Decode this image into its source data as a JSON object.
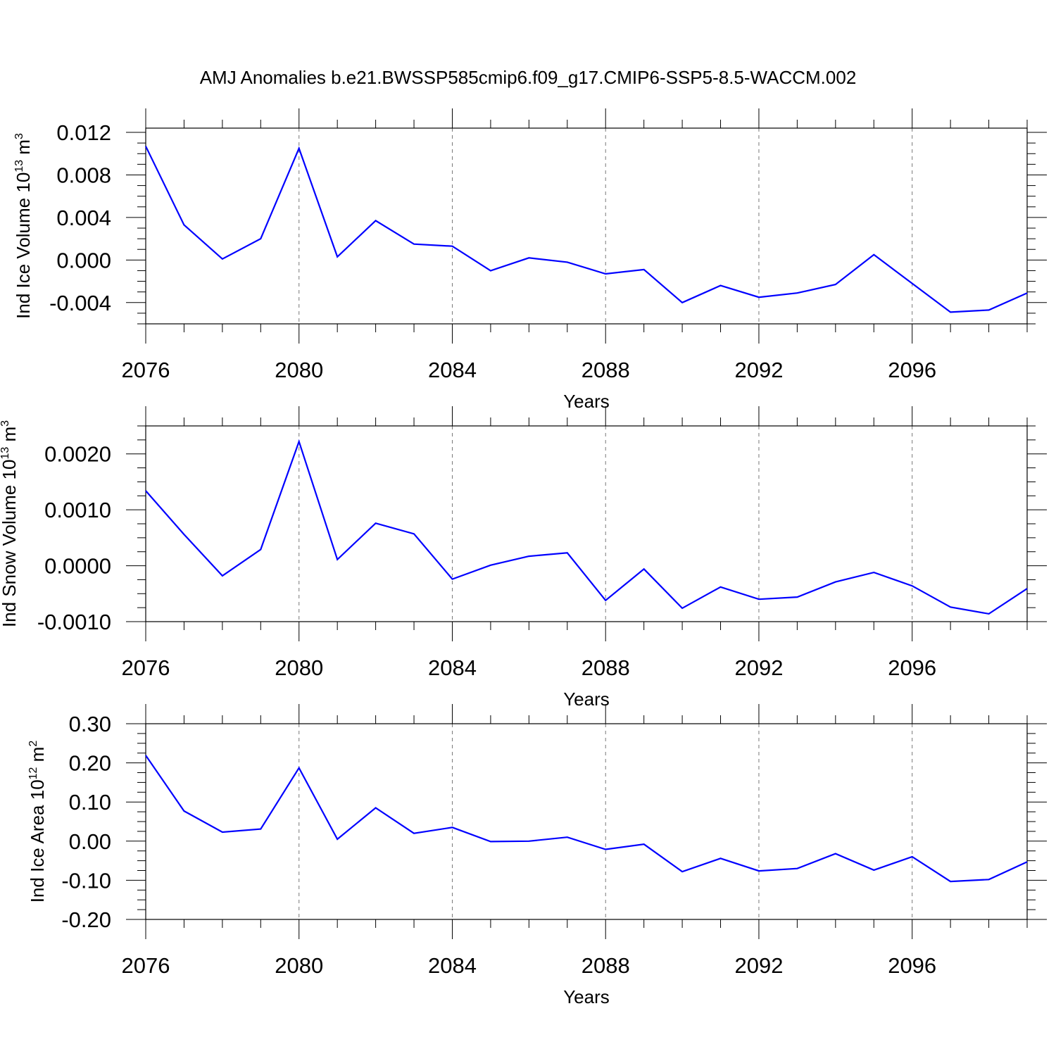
{
  "title": "AMJ Anomalies b.e21.BWSSP585cmip6.f09_g17.CMIP6-SSP5-8.5-WACCM.002",
  "chart_data": [
    {
      "type": "line",
      "ylabel": "Ind Ice Volume 10",
      "ylabel_sup": "13",
      "ylabel_unit": " m",
      "ylabel_unit_sup": "3",
      "xlabel": "Years",
      "xlim": [
        2076,
        2099
      ],
      "ylim": [
        -0.006,
        0.0124
      ],
      "xticks": [
        2076,
        2080,
        2084,
        2088,
        2092,
        2096
      ],
      "xtick_labels": [
        "2076",
        "2080",
        "2084",
        "2088",
        "2092",
        "2096"
      ],
      "yticks": [
        -0.004,
        0.0,
        0.004,
        0.008,
        0.012
      ],
      "ytick_labels": [
        "-0.004",
        "0.000",
        "0.004",
        "0.008",
        "0.012"
      ],
      "grid": "dashed vertical at major x ticks",
      "color": "#0000ff",
      "x": [
        2076,
        2077,
        2078,
        2079,
        2080,
        2081,
        2082,
        2083,
        2084,
        2085,
        2086,
        2087,
        2088,
        2089,
        2090,
        2091,
        2092,
        2093,
        2094,
        2095,
        2096,
        2097,
        2098,
        2099
      ],
      "values": [
        0.0107,
        0.0033,
        0.0001,
        0.002,
        0.0105,
        0.0003,
        0.0037,
        0.0015,
        0.0013,
        -0.001,
        0.0002,
        -0.0002,
        -0.0013,
        -0.0009,
        -0.004,
        -0.0024,
        -0.0035,
        -0.0031,
        -0.0023,
        0.0005,
        -0.0022,
        -0.0049,
        -0.0047,
        -0.0031
      ]
    },
    {
      "type": "line",
      "ylabel": "Ind Snow Volume 10",
      "ylabel_sup": "13",
      "ylabel_unit": " m",
      "ylabel_unit_sup": "3",
      "xlabel": "Years",
      "xlim": [
        2076,
        2099
      ],
      "ylim": [
        -0.001,
        0.0025
      ],
      "xticks": [
        2076,
        2080,
        2084,
        2088,
        2092,
        2096
      ],
      "xtick_labels": [
        "2076",
        "2080",
        "2084",
        "2088",
        "2092",
        "2096"
      ],
      "yticks": [
        -0.001,
        0.0,
        0.001,
        0.002
      ],
      "ytick_labels": [
        "-0.0010",
        "0.0000",
        "0.0010",
        "0.0020"
      ],
      "grid": "dashed vertical at major x ticks",
      "color": "#0000ff",
      "x": [
        2076,
        2077,
        2078,
        2079,
        2080,
        2081,
        2082,
        2083,
        2084,
        2085,
        2086,
        2087,
        2088,
        2089,
        2090,
        2091,
        2092,
        2093,
        2094,
        2095,
        2096,
        2097,
        2098,
        2099
      ],
      "values": [
        0.00134,
        0.00056,
        -0.00018,
        0.00029,
        0.00222,
        0.00011,
        0.00076,
        0.00057,
        -0.00024,
        1e-05,
        0.00017,
        0.00023,
        -0.00062,
        -6e-05,
        -0.00076,
        -0.00038,
        -0.0006,
        -0.00056,
        -0.00029,
        -0.00012,
        -0.00036,
        -0.00074,
        -0.00086,
        -0.00041
      ]
    },
    {
      "type": "line",
      "ylabel": "Ind Ice Area 10",
      "ylabel_sup": "12",
      "ylabel_unit": " m",
      "ylabel_unit_sup": "2",
      "xlabel": "Years",
      "xlim": [
        2076,
        2099
      ],
      "ylim": [
        -0.2,
        0.3
      ],
      "xticks": [
        2076,
        2080,
        2084,
        2088,
        2092,
        2096
      ],
      "xtick_labels": [
        "2076",
        "2080",
        "2084",
        "2088",
        "2092",
        "2096"
      ],
      "yticks": [
        -0.2,
        -0.1,
        0.0,
        0.1,
        0.2,
        0.3
      ],
      "ytick_labels": [
        "-0.20",
        "-0.10",
        "0.00",
        "0.10",
        "0.20",
        "0.30"
      ],
      "grid": "dashed vertical at major x ticks",
      "color": "#0000ff",
      "x": [
        2076,
        2077,
        2078,
        2079,
        2080,
        2081,
        2082,
        2083,
        2084,
        2085,
        2086,
        2087,
        2088,
        2089,
        2090,
        2091,
        2092,
        2093,
        2094,
        2095,
        2096,
        2097,
        2098,
        2099
      ],
      "values": [
        0.219,
        0.077,
        0.023,
        0.031,
        0.187,
        0.005,
        0.085,
        0.02,
        0.035,
        -0.001,
        0.0,
        0.01,
        -0.021,
        -0.008,
        -0.078,
        -0.044,
        -0.076,
        -0.07,
        -0.032,
        -0.074,
        -0.04,
        -0.103,
        -0.098,
        -0.053
      ]
    }
  ]
}
